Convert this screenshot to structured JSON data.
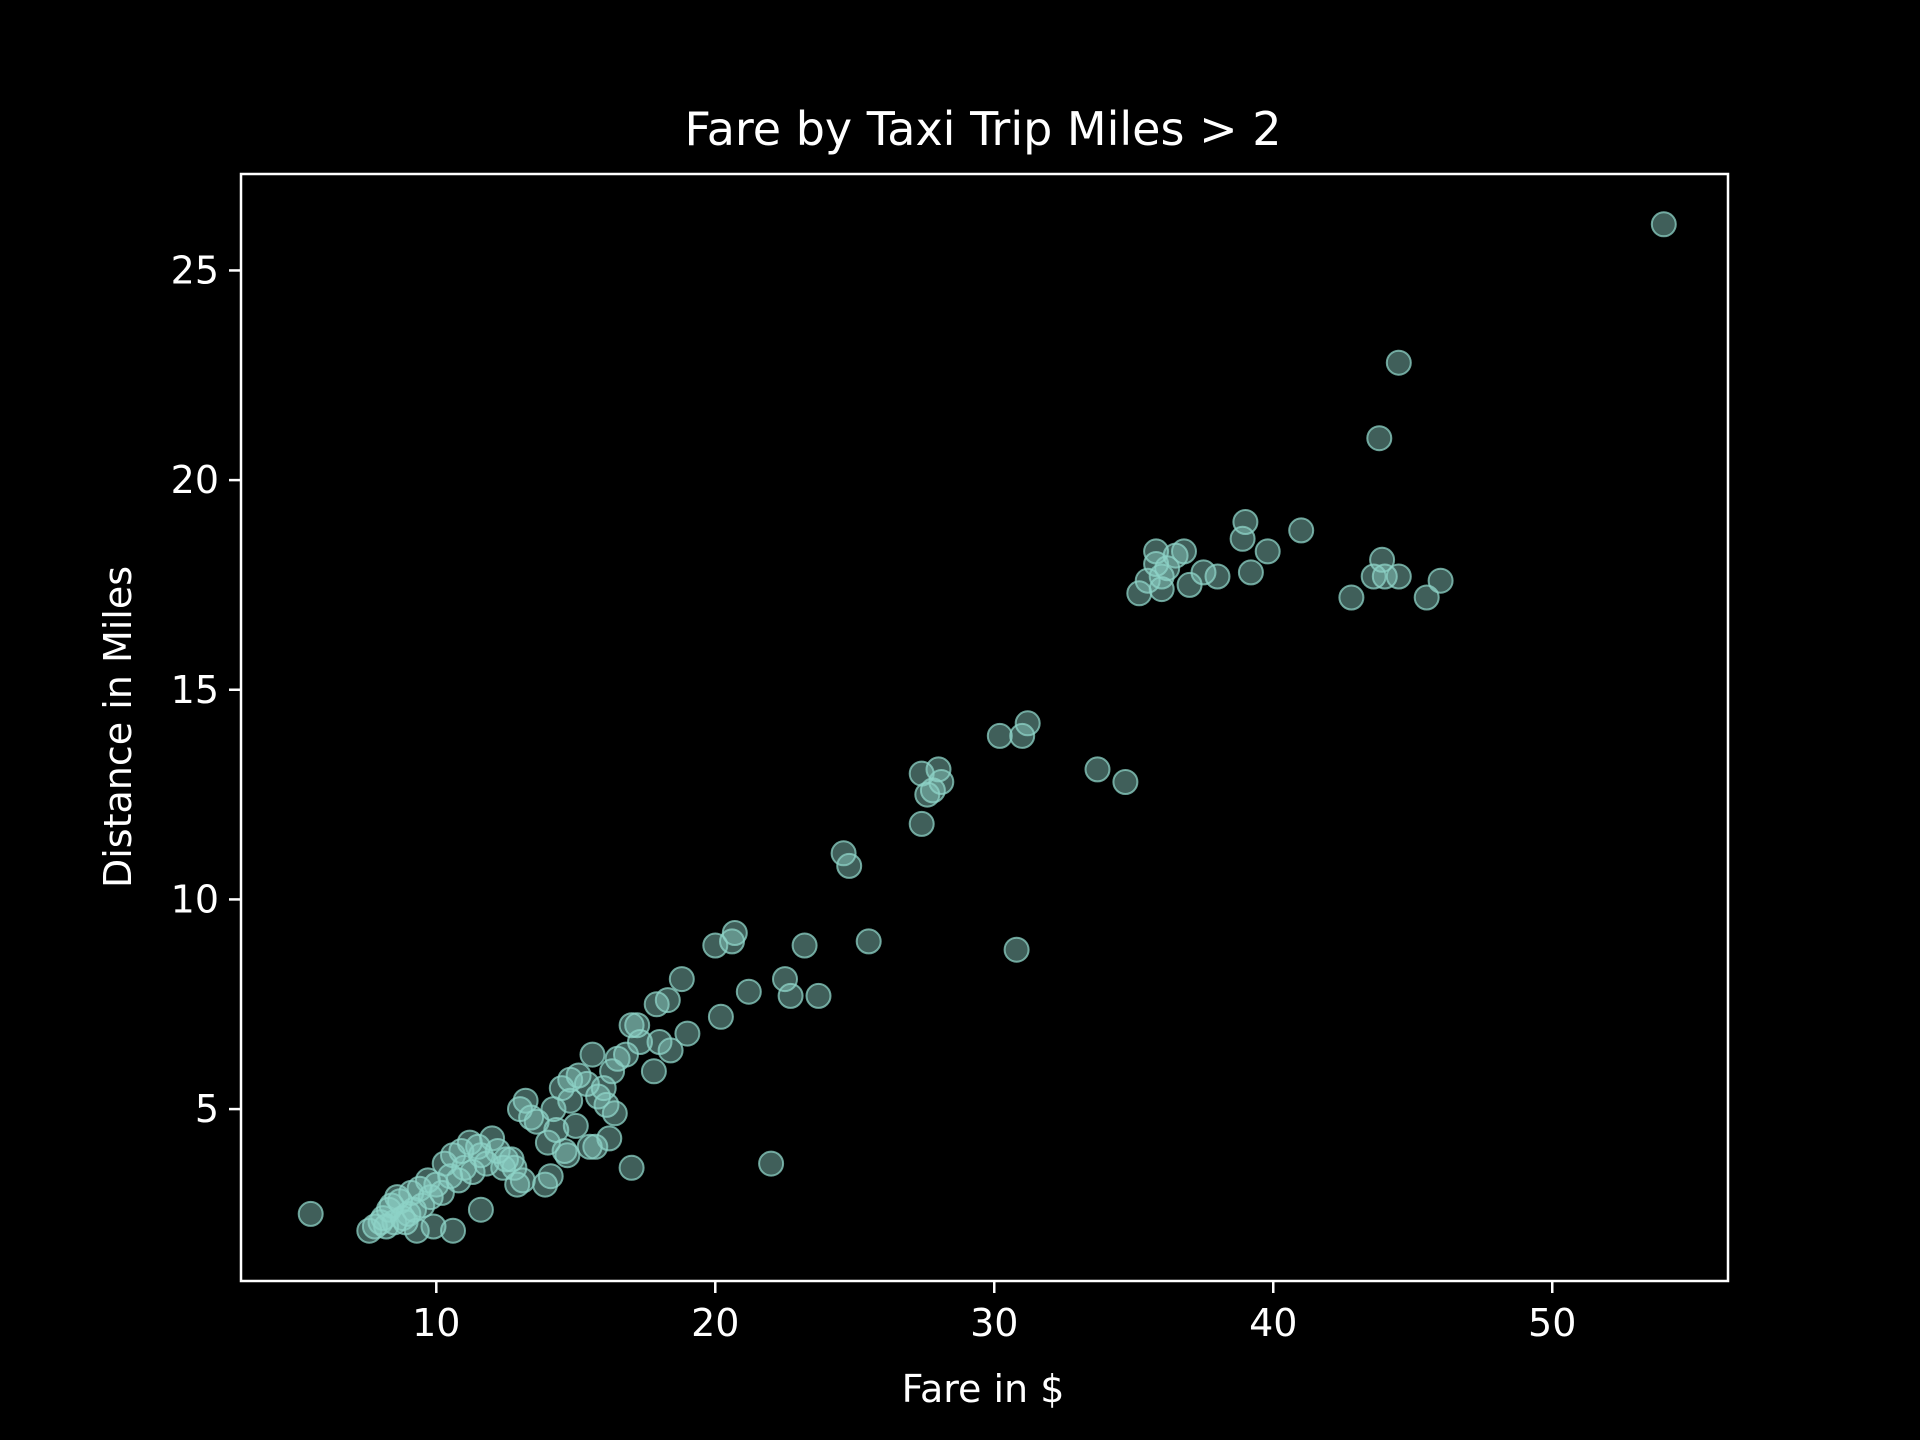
{
  "chart_data": {
    "type": "scatter",
    "title": "Fare by Taxi Trip Miles > 2",
    "xlabel": "Fare in $",
    "ylabel": "Distance in Miles",
    "xlim": [
      3,
      56.3
    ],
    "ylim": [
      0.9,
      27.3
    ],
    "xticks": [
      10,
      20,
      30,
      40,
      50
    ],
    "yticks": [
      5,
      10,
      15,
      20,
      25
    ],
    "grid": false,
    "background": "#000000",
    "axis_color": "#ffffff",
    "marker_color": "#8dd3c7",
    "marker_alpha": 0.45,
    "series": [
      {
        "x": [
          54.0,
          44.5,
          43.8,
          41.0,
          39.8,
          39.0,
          38.9,
          39.2,
          38.0,
          37.5,
          37.0,
          36.8,
          36.5,
          36.2,
          36.0,
          35.8,
          35.8,
          35.5,
          35.2,
          36.0,
          42.8,
          43.6,
          43.9,
          44.0,
          44.5,
          45.5,
          46.0,
          31.2,
          31.0,
          30.2,
          33.7,
          34.7,
          27.4,
          27.6,
          28.0,
          28.1,
          27.8,
          27.4,
          24.6,
          24.8,
          30.8,
          25.5,
          20.7,
          20.6,
          20.0,
          23.2,
          22.5,
          22.7,
          23.7,
          21.2,
          20.2,
          18.8,
          18.3,
          17.9,
          19.0,
          18.4,
          17.8,
          18.0,
          17.2,
          17.0,
          17.3,
          16.8,
          16.5,
          16.3,
          16.0,
          15.6,
          15.4,
          15.8,
          16.1,
          16.4,
          15.1,
          14.8,
          14.5,
          14.2,
          14.8,
          15.0,
          15.5,
          16.2,
          14.3,
          14.0,
          13.6,
          13.2,
          13.0,
          13.4,
          12.8,
          12.5,
          12.2,
          12.0,
          11.6,
          11.3,
          11.0,
          10.8,
          10.5,
          10.2,
          10.0,
          9.8,
          9.5,
          9.2,
          9.0,
          8.8,
          8.5,
          8.2,
          8.0,
          7.8,
          7.6,
          8.3,
          8.7,
          9.1,
          9.4,
          9.7,
          10.3,
          10.6,
          10.9,
          11.2,
          11.5,
          11.8,
          12.4,
          12.7,
          13.1,
          13.9,
          14.6,
          5.5,
          17.0,
          22.0,
          11.6,
          10.6,
          9.9,
          9.3,
          8.9,
          8.6,
          8.4,
          8.1,
          12.9,
          14.1,
          14.7,
          15.7
        ],
        "y": [
          26.1,
          22.8,
          21.0,
          18.8,
          18.3,
          19.0,
          18.6,
          17.8,
          17.7,
          17.8,
          17.5,
          18.3,
          18.2,
          17.9,
          17.4,
          18.0,
          18.3,
          17.6,
          17.3,
          17.7,
          17.2,
          17.7,
          18.1,
          17.7,
          17.7,
          17.2,
          17.6,
          14.2,
          13.9,
          13.9,
          13.1,
          12.8,
          13.0,
          12.5,
          13.1,
          12.8,
          12.6,
          11.8,
          11.1,
          10.8,
          8.8,
          9.0,
          9.2,
          9.0,
          8.9,
          8.9,
          8.1,
          7.7,
          7.7,
          7.8,
          7.2,
          8.1,
          7.6,
          7.5,
          6.8,
          6.4,
          5.9,
          6.6,
          7.0,
          7.0,
          6.6,
          6.3,
          6.2,
          5.9,
          5.5,
          6.3,
          5.6,
          5.3,
          5.1,
          4.9,
          5.8,
          5.7,
          5.5,
          5.0,
          5.2,
          4.6,
          4.1,
          4.3,
          4.5,
          4.2,
          4.7,
          5.2,
          5.0,
          4.8,
          3.6,
          3.8,
          4.0,
          4.3,
          3.9,
          3.5,
          3.6,
          3.3,
          3.4,
          3.0,
          3.2,
          2.9,
          2.7,
          2.6,
          2.5,
          2.4,
          2.3,
          2.2,
          2.3,
          2.2,
          2.1,
          2.6,
          2.8,
          3.0,
          3.1,
          3.3,
          3.7,
          3.9,
          4.0,
          4.2,
          4.1,
          3.7,
          3.6,
          3.8,
          3.3,
          3.2,
          4.0,
          2.5,
          3.6,
          3.7,
          2.6,
          2.1,
          2.2,
          2.1,
          2.3,
          2.9,
          2.7,
          2.4,
          3.2,
          3.4,
          3.9,
          4.1
        ]
      }
    ]
  }
}
